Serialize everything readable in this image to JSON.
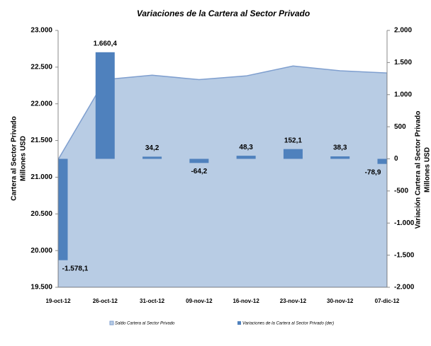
{
  "chart_data": {
    "type": "area-bar",
    "title": "Variaciones de la Cartera al Sector Privado",
    "ylabel": [
      "Cartera al Sector Privado",
      "Millones USD"
    ],
    "y2label": [
      "Variación  Cartera al Sector Privado",
      "Millones USD"
    ],
    "categories": [
      "19-oct-12",
      "26-oct-12",
      "31-oct-12",
      "09-nov-12",
      "16-nov-12",
      "23-nov-12",
      "30-nov-12",
      "07-dic-12"
    ],
    "series": [
      {
        "name": "Saldo Cartera al Sector Privado",
        "type": "area",
        "color": "#b8cce4",
        "values": [
          21240,
          22330,
          22390,
          22330,
          22380,
          22515,
          22450,
          22420
        ]
      },
      {
        "name": "Variaciones de la Cartera al Sector Privado (der)",
        "type": "bar",
        "axis": "y2",
        "color": "#4f81bd",
        "values": [
          -1578.1,
          1660.4,
          34.2,
          -64.2,
          48.3,
          152.1,
          38.3,
          -78.9
        ],
        "value_labels": [
          "-1.578,1",
          "1.660,4",
          "34,2",
          "-64,2",
          "48,3",
          "152,1",
          "38,3",
          "-78,9"
        ]
      }
    ],
    "ylim": [
      19500,
      23000
    ],
    "yticks": [
      {
        "value": 19500,
        "label": "19.500"
      },
      {
        "value": 20000,
        "label": "20.000"
      },
      {
        "value": 20500,
        "label": "20.500"
      },
      {
        "value": 21000,
        "label": "21.000"
      },
      {
        "value": 21500,
        "label": "21.500"
      },
      {
        "value": 22000,
        "label": "22.000"
      },
      {
        "value": 22500,
        "label": "22.500"
      },
      {
        "value": 23000,
        "label": "23.000"
      }
    ],
    "y2lim": [
      -2000,
      2000
    ],
    "y2ticks": [
      {
        "value": -2000,
        "label": "-2.000"
      },
      {
        "value": -1500,
        "label": "-1.500"
      },
      {
        "value": -1000,
        "label": "-1.000"
      },
      -500,
      0,
      500,
      {
        "value": 1000,
        "label": "1.000"
      },
      {
        "value": 1500,
        "label": "1.500"
      },
      {
        "value": 2000,
        "label": "2.000"
      }
    ],
    "legend": "bottom"
  }
}
